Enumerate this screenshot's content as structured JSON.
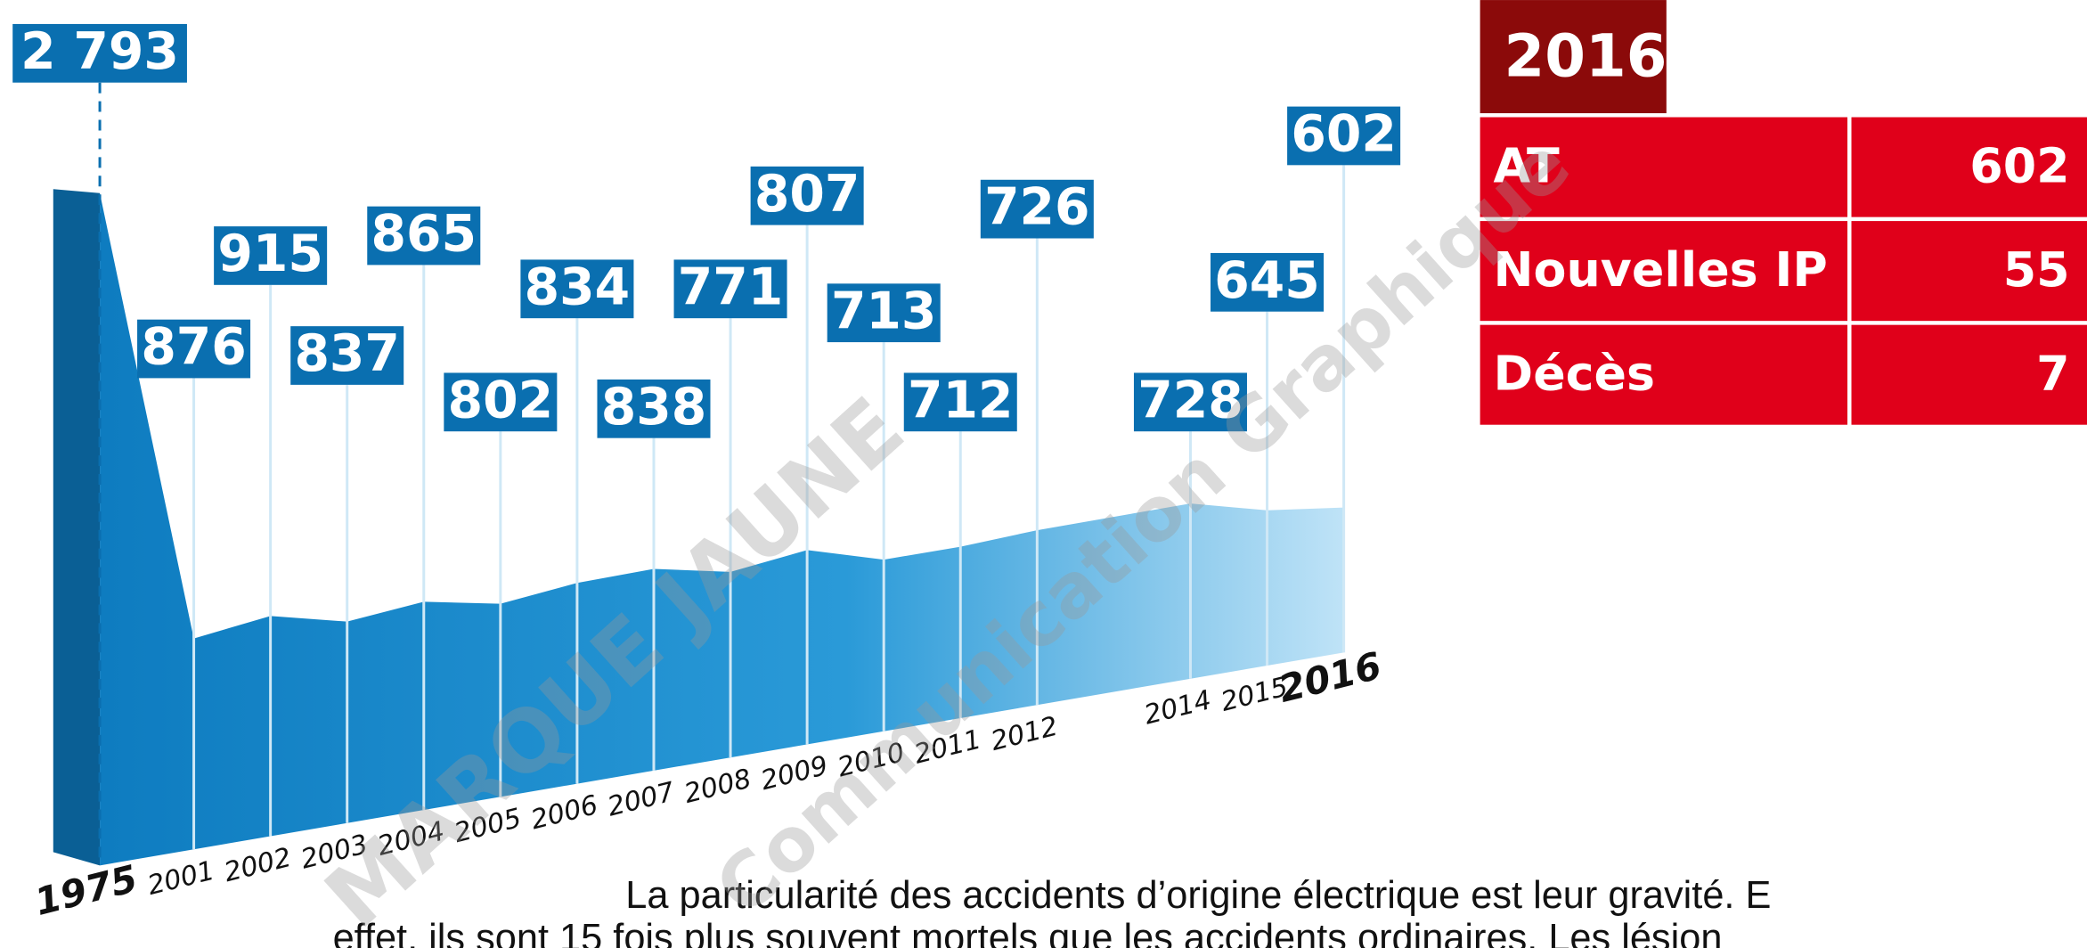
{
  "chart_data": {
    "type": "area",
    "categories": [
      "1975",
      "2001",
      "2002",
      "2003",
      "2004",
      "2005",
      "2006",
      "2007",
      "2008",
      "2009",
      "2010",
      "2011",
      "2012",
      "2014",
      "2015",
      "2016"
    ],
    "values": [
      2793,
      876,
      915,
      837,
      865,
      802,
      834,
      838,
      771,
      807,
      713,
      712,
      726,
      728,
      645,
      602
    ],
    "value_labels": [
      "2 793",
      "876",
      "915",
      "837",
      "865",
      "802",
      "834",
      "838",
      "771",
      "807",
      "713",
      "712",
      "726",
      "728",
      "645",
      "602"
    ],
    "color": "#1a8fd0",
    "label_color": "#0a6fb0"
  },
  "table": {
    "title": "2016",
    "rows": [
      [
        "AT",
        602
      ],
      [
        "Nouvelles IP",
        55
      ],
      [
        "Décès",
        7
      ]
    ]
  },
  "paragraph": [
    "La particularité des accidents d’origine électrique est leur gravité. E",
    "effet, ils sont 15 fois plus souvent mortels que les accidents ordinaires. Les lésion"
  ],
  "watermark": [
    "MARQUE JAUNE",
    "Communication Graphique"
  ]
}
